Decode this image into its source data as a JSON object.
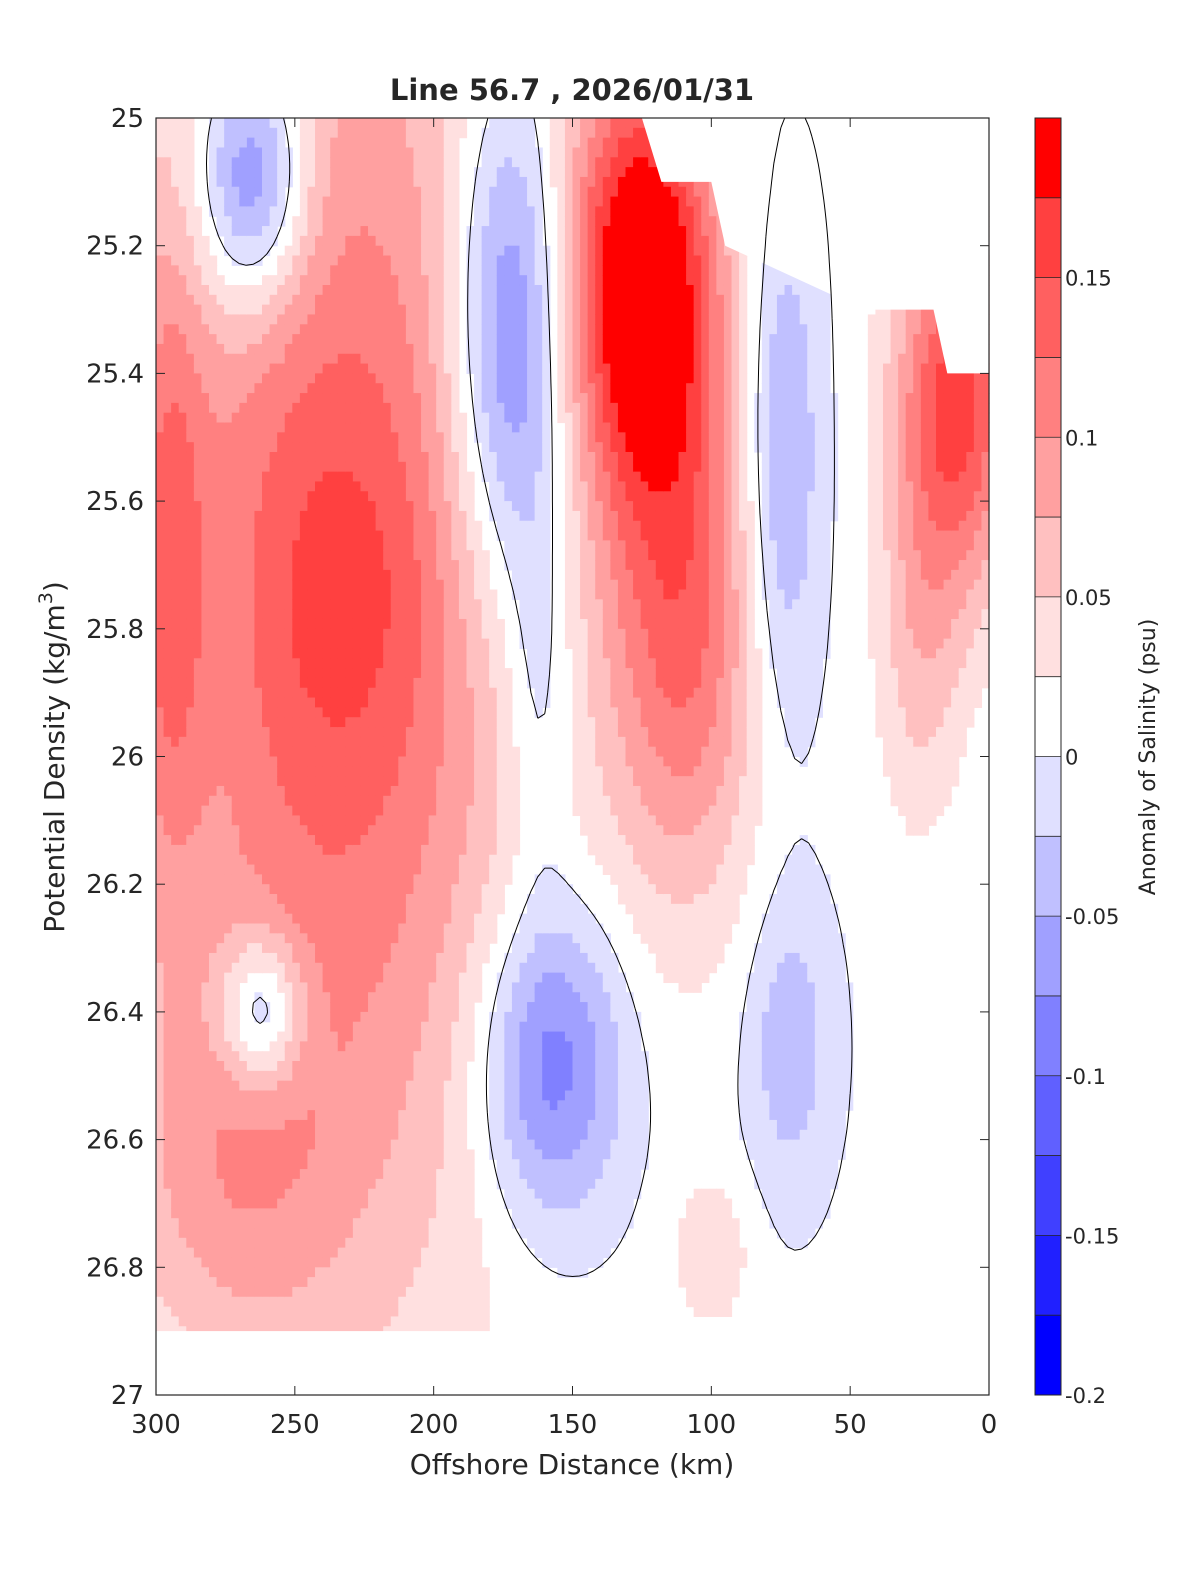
{
  "chart_data": {
    "type": "contour",
    "title": "Line 56.7 , 2026/01/31",
    "xlabel": "Offshore Distance (km)",
    "ylabel": "Potential Density (kg/m³)",
    "ylabel_main": "Potential Density (kg/m",
    "ylabel_sup": "3",
    "ylabel_close": ")",
    "colorbar_label": "Anomaly of Salinity (psu)",
    "xlim": [
      300,
      0
    ],
    "ylim": [
      25,
      27
    ],
    "x_ticks": [
      300,
      250,
      200,
      150,
      100,
      50,
      0
    ],
    "y_ticks": [
      25,
      25.2,
      25.4,
      25.6,
      25.8,
      26,
      26.2,
      26.4,
      26.6,
      26.8,
      27
    ],
    "y_tick_labels": [
      "25",
      "25.2",
      "25.4",
      "25.6",
      "25.8",
      "26",
      "26.2",
      "26.4",
      "26.6",
      "26.8",
      "27"
    ],
    "colorbar_range": [
      -0.2,
      0.2
    ],
    "colorbar_ticks": [
      -0.2,
      -0.15,
      -0.1,
      -0.05,
      0,
      0.05,
      0.1,
      0.15
    ],
    "colorbar_tick_labels": [
      "-0.2",
      "-0.15",
      "-0.1",
      "-0.05",
      "0",
      "0.05",
      "0.1",
      "0.15"
    ],
    "levels": [
      {
        "lo": -0.2,
        "hi": -0.175,
        "color": "#0000ff"
      },
      {
        "lo": -0.175,
        "hi": -0.15,
        "color": "#2020ff"
      },
      {
        "lo": -0.15,
        "hi": -0.125,
        "color": "#4040ff"
      },
      {
        "lo": -0.125,
        "hi": -0.1,
        "color": "#6060ff"
      },
      {
        "lo": -0.1,
        "hi": -0.075,
        "color": "#8080ff"
      },
      {
        "lo": -0.075,
        "hi": -0.05,
        "color": "#a0a0ff"
      },
      {
        "lo": -0.05,
        "hi": -0.025,
        "color": "#c0c0ff"
      },
      {
        "lo": -0.025,
        "hi": 0.0,
        "color": "#e0e0ff"
      },
      {
        "lo": 0.0,
        "hi": 0.025,
        "color": "#ffffff"
      },
      {
        "lo": 0.025,
        "hi": 0.05,
        "color": "#ffe0e0"
      },
      {
        "lo": 0.05,
        "hi": 0.075,
        "color": "#ffc0c0"
      },
      {
        "lo": 0.075,
        "hi": 0.1,
        "color": "#ffa0a0"
      },
      {
        "lo": 0.1,
        "hi": 0.125,
        "color": "#ff8080"
      },
      {
        "lo": 0.125,
        "hi": 0.15,
        "color": "#ff6060"
      },
      {
        "lo": 0.15,
        "hi": 0.175,
        "color": "#ff4040"
      },
      {
        "lo": 0.175,
        "hi": 0.2,
        "color": "#ff0000"
      }
    ],
    "features": [
      {
        "name": "west-high-anomaly",
        "x": 235,
        "y": 25.75,
        "rx": 70,
        "ry": 1.1,
        "amp": 0.13
      },
      {
        "name": "west-edge-high",
        "x": 296,
        "y": 25.7,
        "rx": 14,
        "ry": 0.5,
        "amp": 0.08
      },
      {
        "name": "west-deep-high",
        "x": 275,
        "y": 26.65,
        "rx": 40,
        "ry": 0.3,
        "amp": 0.05
      },
      {
        "name": "west-core-high",
        "x": 232,
        "y": 25.75,
        "rx": 35,
        "ry": 0.3,
        "amp": 0.03
      },
      {
        "name": "west-low-pocket",
        "x": 262,
        "y": 26.4,
        "rx": 15,
        "ry": 0.12,
        "amp": -0.11
      },
      {
        "name": "west-upper-low",
        "x": 265,
        "y": 25.1,
        "rx": 20,
        "ry": 0.2,
        "amp": -0.14
      },
      {
        "name": "central-low-upper",
        "x": 172,
        "y": 25.35,
        "rx": 22,
        "ry": 0.4,
        "amp": -0.13
      },
      {
        "name": "central-low-tail",
        "x": 162,
        "y": 25.9,
        "rx": 12,
        "ry": 0.3,
        "amp": -0.04
      },
      {
        "name": "central-low-deep",
        "x": 158,
        "y": 26.48,
        "rx": 26,
        "ry": 0.25,
        "amp": -0.11
      },
      {
        "name": "east-high-core",
        "x": 125,
        "y": 25.25,
        "rx": 28,
        "ry": 0.35,
        "amp": 0.21
      },
      {
        "name": "east-high-deep",
        "x": 110,
        "y": 25.8,
        "rx": 28,
        "ry": 0.42,
        "amp": 0.12
      },
      {
        "name": "east-low-upper",
        "x": 75,
        "y": 25.55,
        "rx": 14,
        "ry": 0.4,
        "amp": -0.07
      },
      {
        "name": "east-low-deep",
        "x": 72,
        "y": 26.45,
        "rx": 15,
        "ry": 0.22,
        "amp": -0.05
      },
      {
        "name": "coastal-high",
        "x": 12,
        "y": 25.45,
        "rx": 22,
        "ry": 0.3,
        "amp": 0.16
      },
      {
        "name": "coastal-high-tail",
        "x": 25,
        "y": 25.85,
        "rx": 16,
        "ry": 0.28,
        "amp": 0.05
      },
      {
        "name": "deep-east-high",
        "x": 100,
        "y": 26.78,
        "rx": 14,
        "ry": 0.12,
        "amp": 0.04
      }
    ],
    "top_mask": [
      [
        300,
        25
      ],
      [
        155,
        25
      ],
      [
        145,
        25
      ],
      [
        125,
        25
      ],
      [
        118,
        25.1
      ],
      [
        100,
        25.1
      ],
      [
        95,
        25.2
      ],
      [
        45,
        25.3
      ],
      [
        20,
        25.3
      ],
      [
        15,
        25.4
      ],
      [
        0,
        25.4
      ]
    ],
    "bottom_mask": [
      [
        300,
        26.9
      ],
      [
        0,
        26.9
      ]
    ],
    "series": []
  }
}
